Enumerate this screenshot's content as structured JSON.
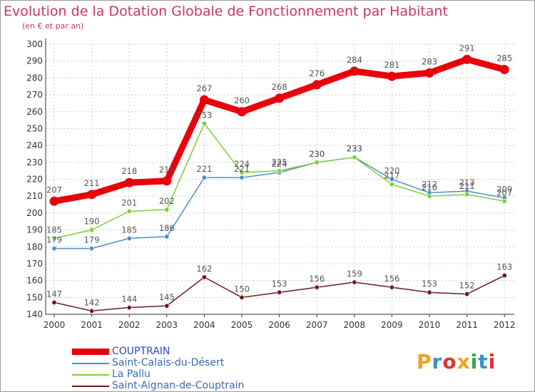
{
  "header": {
    "title": "Evolution de la Dotation Globale de Fonctionnement par Habitant",
    "subtitle": "(en € et par an)"
  },
  "logo": {
    "text": "Proxiti",
    "colors": [
      "#f4a020",
      "#3a8fd0",
      "#e23030",
      "#f4a020",
      "#2ea84a",
      "#3a8fd0",
      "#e23030"
    ]
  },
  "colors": {
    "title": "#cc3366",
    "axis": "#333333",
    "grid": "#cccccc",
    "label": "#555555"
  },
  "chart_data": {
    "type": "line",
    "title": "Evolution de la Dotation Globale de Fonctionnement par Habitant",
    "subtitle": "(en € et par an)",
    "xlabel": "",
    "ylabel": "",
    "ylim": [
      140,
      300
    ],
    "yticks": [
      140,
      150,
      160,
      170,
      180,
      190,
      200,
      210,
      220,
      230,
      240,
      250,
      260,
      270,
      280,
      290,
      300
    ],
    "grid": true,
    "legend_placement": "bottom-left",
    "categories": [
      "2000",
      "2001",
      "2002",
      "2003",
      "2004",
      "2005",
      "2006",
      "2007",
      "2008",
      "2009",
      "2010",
      "2011",
      "2012"
    ],
    "series": [
      {
        "name": "COUPTRAIN",
        "color": "#e8000b",
        "values": [
          207,
          211,
          218,
          219,
          267,
          260,
          268,
          276,
          284,
          281,
          283,
          291,
          285
        ]
      },
      {
        "name": "Saint-Calais-du-Désert",
        "color": "#4f8ec9",
        "values": [
          179,
          179,
          185,
          186,
          221,
          221,
          224,
          230,
          233,
          220,
          212,
          213,
          209
        ]
      },
      {
        "name": "La Pallu",
        "color": "#7ccf3a",
        "values": [
          185,
          190,
          201,
          202,
          253,
          224,
          225,
          230,
          233,
          217,
          210,
          211,
          207
        ]
      },
      {
        "name": "Saint-Aignan-de-Couptrain",
        "color": "#6b1b1b",
        "values": [
          147,
          142,
          144,
          145,
          162,
          150,
          153,
          156,
          159,
          156,
          153,
          152,
          163
        ]
      }
    ]
  }
}
